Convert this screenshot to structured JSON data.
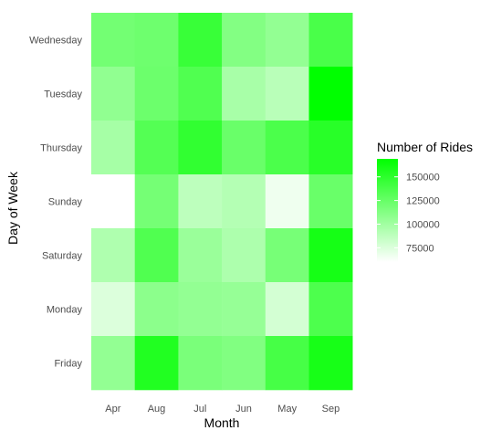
{
  "chart_data": {
    "type": "heatmap",
    "xlabel": "Month",
    "ylabel": "Day of Week",
    "x_categories": [
      "Apr",
      "Aug",
      "Jul",
      "Jun",
      "May",
      "Sep"
    ],
    "y_categories": [
      "Wednesday",
      "Tuesday",
      "Thursday",
      "Sunday",
      "Saturday",
      "Monday",
      "Friday"
    ],
    "values": [
      [
        120000,
        122000,
        145000,
        113000,
        106000,
        138000
      ],
      [
        107000,
        123000,
        135000,
        97000,
        90000,
        169000
      ],
      [
        98000,
        133000,
        148000,
        124000,
        137000,
        152000
      ],
      [
        60000,
        119000,
        88000,
        92000,
        67000,
        124000
      ],
      [
        94000,
        135000,
        103000,
        95000,
        118000,
        160000
      ],
      [
        75000,
        109000,
        106000,
        105000,
        79000,
        136000
      ],
      [
        106000,
        155000,
        117000,
        114000,
        139000,
        159000
      ]
    ],
    "legend": {
      "title": "Number of Rides",
      "ticks": [
        75000,
        100000,
        125000,
        150000
      ],
      "tick_labels": [
        "75000",
        "100000",
        "125000",
        "150000"
      ],
      "range": [
        60000,
        169000
      ],
      "low_color": "#ffffff",
      "high_color": "#00ff00"
    }
  }
}
